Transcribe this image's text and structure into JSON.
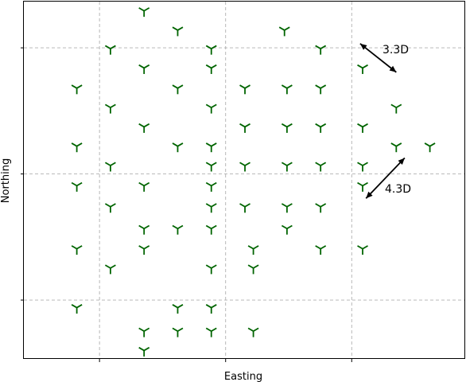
{
  "chart_data": {
    "type": "scatter",
    "title": "",
    "xlabel": "Easting",
    "ylabel": "Northing",
    "xlim": [
      0,
      525
    ],
    "ylim": [
      0,
      425
    ],
    "xticks": [
      90,
      240,
      390
    ],
    "yticks": [
      70,
      220,
      370
    ],
    "xtick_labels": [
      "",
      "",
      ""
    ],
    "ytick_labels": [
      "",
      "",
      ""
    ],
    "grid": true,
    "marker": "tri-down",
    "marker_color": "#006400",
    "series": [
      {
        "name": "",
        "points": [
          [
            143,
            414
          ],
          [
            183,
            391
          ],
          [
            310,
            391
          ],
          [
            103,
            369
          ],
          [
            223,
            369
          ],
          [
            353,
            369
          ],
          [
            143,
            346
          ],
          [
            223,
            346
          ],
          [
            403,
            346
          ],
          [
            63,
            322
          ],
          [
            183,
            322
          ],
          [
            263,
            322
          ],
          [
            313,
            322
          ],
          [
            353,
            322
          ],
          [
            103,
            299
          ],
          [
            223,
            299
          ],
          [
            443,
            299
          ],
          [
            143,
            276
          ],
          [
            263,
            276
          ],
          [
            313,
            276
          ],
          [
            353,
            276
          ],
          [
            403,
            276
          ],
          [
            63,
            253
          ],
          [
            183,
            253
          ],
          [
            223,
            253
          ],
          [
            443,
            253
          ],
          [
            483,
            253
          ],
          [
            103,
            230
          ],
          [
            223,
            230
          ],
          [
            263,
            230
          ],
          [
            313,
            230
          ],
          [
            353,
            230
          ],
          [
            403,
            230
          ],
          [
            63,
            206
          ],
          [
            143,
            206
          ],
          [
            223,
            206
          ],
          [
            403,
            206
          ],
          [
            103,
            181
          ],
          [
            223,
            181
          ],
          [
            263,
            181
          ],
          [
            313,
            181
          ],
          [
            353,
            181
          ],
          [
            143,
            155
          ],
          [
            183,
            155
          ],
          [
            223,
            155
          ],
          [
            313,
            155
          ],
          [
            63,
            131
          ],
          [
            143,
            131
          ],
          [
            273,
            131
          ],
          [
            353,
            131
          ],
          [
            403,
            131
          ],
          [
            103,
            108
          ],
          [
            223,
            108
          ],
          [
            273,
            108
          ],
          [
            63,
            61
          ],
          [
            183,
            61
          ],
          [
            223,
            61
          ],
          [
            143,
            33
          ],
          [
            183,
            33
          ],
          [
            223,
            33
          ],
          [
            273,
            33
          ],
          [
            143,
            10
          ]
        ]
      }
    ],
    "annotations": [
      {
        "text": "3.3D",
        "arrow": [
          [
            400,
            375
          ],
          [
            443,
            341
          ]
        ]
      },
      {
        "text": "4.3D",
        "arrow": [
          [
            453,
            239
          ],
          [
            407,
            191
          ]
        ]
      }
    ]
  }
}
